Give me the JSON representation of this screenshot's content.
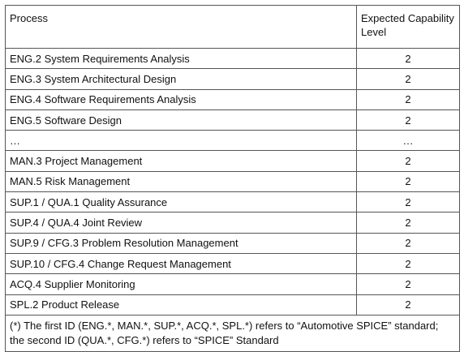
{
  "table": {
    "header": [
      "Process",
      "Expected Capability Level"
    ],
    "rows": [
      [
        "ENG.2 System Requirements Analysis",
        2
      ],
      [
        "ENG.3 System Architectural Design",
        2
      ],
      [
        "ENG.4 Software Requirements Analysis",
        2
      ],
      [
        "ENG.5 Software Design",
        2
      ],
      [
        "…",
        "…"
      ],
      [
        "MAN.3 Project Management",
        2
      ],
      [
        "MAN.5 Risk Management",
        2
      ],
      [
        "SUP.1 / QUA.1 Quality Assurance",
        2
      ],
      [
        "SUP.4 / QUA.4 Joint Review",
        2
      ],
      [
        "SUP.9 / CFG.3 Problem Resolution Management",
        2
      ],
      [
        "SUP.10 / CFG.4 Change Request Management",
        2
      ],
      [
        "ACQ.4 Supplier Monitoring",
        2
      ],
      [
        "SPL.2 Product Release",
        2
      ]
    ],
    "footnote": "(*) The first ID (ENG.*, MAN.*, SUP.*, ACQ.*, SPL.*) refers to “Automotive SPICE” standard; the second ID (QUA.*, CFG.*) refers to “SPICE” Standard"
  }
}
